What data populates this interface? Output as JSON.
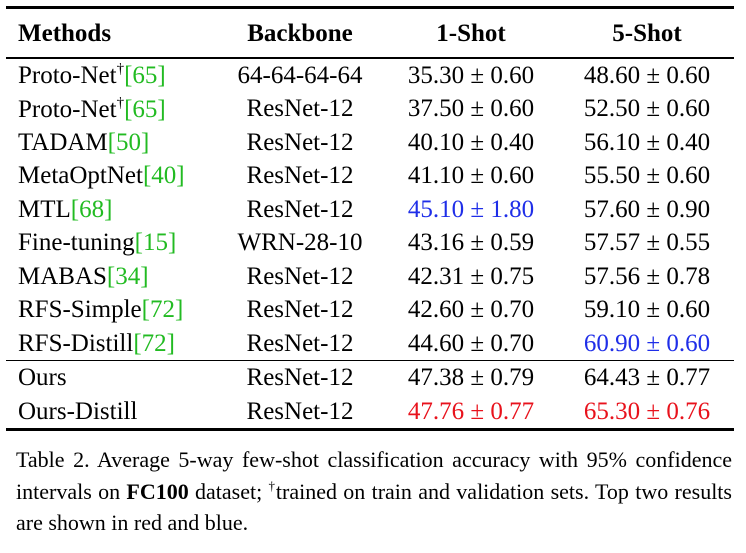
{
  "table": {
    "headers": {
      "method": "Methods",
      "backbone": "Backbone",
      "one_shot": "1-Shot",
      "five_shot": "5-Shot"
    },
    "rows": [
      {
        "method": "Proto-Net",
        "dagger": "†",
        "cite": "[65]",
        "backbone": "64-64-64-64",
        "one_shot": "35.30 ± 0.60",
        "five_shot": "48.60 ± 0.60"
      },
      {
        "method": "Proto-Net",
        "dagger": "†",
        "cite": "[65]",
        "backbone": "ResNet-12",
        "one_shot": "37.50 ± 0.60",
        "five_shot": "52.50 ± 0.60"
      },
      {
        "method": "TADAM",
        "cite": "[50]",
        "backbone": "ResNet-12",
        "one_shot": "40.10 ± 0.40",
        "five_shot": "56.10 ± 0.40"
      },
      {
        "method": "MetaOptNet",
        "cite": "[40]",
        "backbone": "ResNet-12",
        "one_shot": "41.10 ± 0.60",
        "five_shot": "55.50 ± 0.60"
      },
      {
        "method": "MTL",
        "cite": "[68]",
        "backbone": "ResNet-12",
        "one_shot": "45.10 ± 1.80",
        "five_shot": "57.60 ± 0.90"
      },
      {
        "method": "Fine-tuning",
        "cite": "[15]",
        "backbone": "WRN-28-10",
        "one_shot": "43.16 ± 0.59",
        "five_shot": "57.57 ± 0.55"
      },
      {
        "method": "MABAS",
        "cite": "[34]",
        "backbone": "ResNet-12",
        "one_shot": "42.31 ± 0.75",
        "five_shot": "57.56 ± 0.78"
      },
      {
        "method": "RFS-Simple",
        "cite": "[72]",
        "backbone": "ResNet-12",
        "one_shot": "42.60 ± 0.70",
        "five_shot": "59.10 ± 0.60"
      },
      {
        "method": "RFS-Distill",
        "cite": "[72]",
        "backbone": "ResNet-12",
        "one_shot": "44.60 ± 0.70",
        "five_shot": "60.90 ± 0.60"
      },
      {
        "method": "Ours",
        "backbone": "ResNet-12",
        "one_shot": "47.38 ± 0.79",
        "five_shot": "64.43 ± 0.77"
      },
      {
        "method": "Ours-Distill",
        "backbone": "ResNet-12",
        "one_shot": "47.76 ± 0.77",
        "five_shot": "65.30 ± 0.76"
      }
    ]
  },
  "highlight_colors": {
    "red": "#e8121c",
    "blue": "#1f2ee8",
    "citation": "#22bb22"
  },
  "caption": {
    "part1": "Table 2. Average 5-way few-shot classification accuracy with 95% confidence intervals on ",
    "dataset": "FC100",
    "part2": " dataset; ",
    "dagger": "†",
    "part3": "trained on train and validation sets. Top two results are shown in red and blue."
  }
}
